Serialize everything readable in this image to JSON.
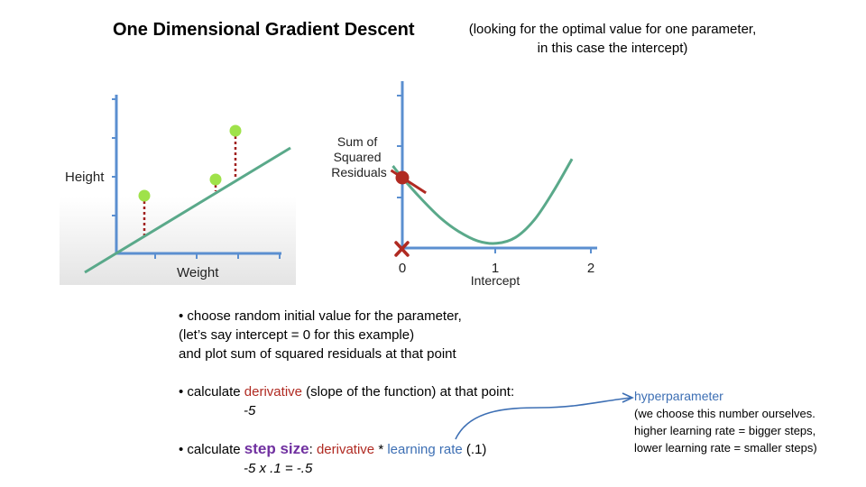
{
  "header": {
    "title": "One Dimensional Gradient Descent",
    "subtitle_line1": "(looking for the optimal value for one parameter,",
    "subtitle_line2": "in this case the intercept)"
  },
  "left_plot": {
    "ylabel": "Height",
    "xlabel": "Weight",
    "colors": {
      "axis": "#5b8fd0",
      "line": "#5aa98a",
      "point": "#9fe24a",
      "residual": "#a0201f",
      "bg_bottom": "#e6e6e6"
    }
  },
  "chart_data": {
    "type": "line",
    "title": "",
    "xlabel": "Intercept",
    "ylabel_lines": [
      "Sum of",
      "Squared",
      "Residuals"
    ],
    "xticks": [
      "0",
      "1",
      "2"
    ],
    "xlim": [
      0,
      2
    ],
    "curve": {
      "x": [
        -0.1,
        0,
        0.2,
        0.4,
        0.6,
        0.8,
        1.0,
        1.2,
        1.4,
        1.6,
        1.8
      ],
      "y": [
        3.5,
        3.0,
        2.1,
        1.3,
        0.7,
        0.3,
        0.2,
        0.45,
        1.2,
        2.4,
        3.8
      ]
    },
    "initial_point": {
      "x": 0,
      "y": 3.0
    },
    "tangent_slope": -5,
    "colors": {
      "curve": "#5aa98a",
      "tangent": "#b02a22",
      "point": "#b02a22",
      "axis": "#5b8fd0",
      "marker": "#b02a22"
    }
  },
  "bullets": {
    "b1_line1": "• choose random initial value for the parameter,",
    "b1_line2": "(let’s say intercept = 0 for this example)",
    "b1_line3": "and plot sum of squared residuals at that point",
    "b2_pre": "• calculate ",
    "b2_red": "derivative",
    "b2_post": " (slope of the function) at that point:",
    "b2_value": "-5",
    "b3_pre": "• calculate ",
    "b3_step": "step size",
    "b3_colon": ": ",
    "b3_red": "derivative",
    "b3_star": " * ",
    "b3_blue": "learning rate",
    "b3_post": " (.1)",
    "b3_value": "-5 x .1 = -.5"
  },
  "note": {
    "hyper": "hyperparameter",
    "line1": "(we choose this number ourselves.",
    "line2": "higher learning rate = bigger steps,",
    "line3": "lower learning rate = smaller steps)"
  }
}
